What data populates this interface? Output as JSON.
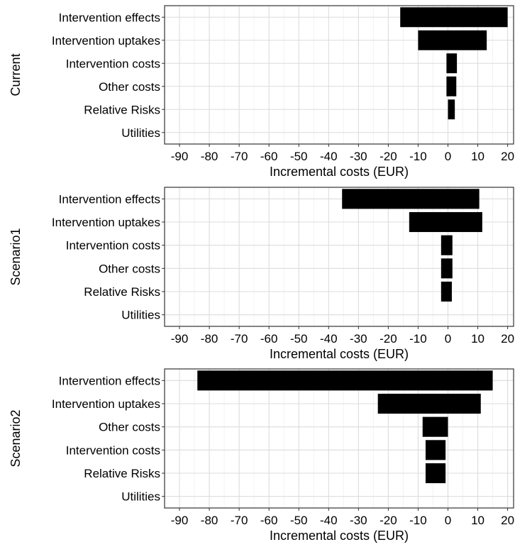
{
  "chart_data": [
    {
      "type": "bar",
      "orientation": "horizontal",
      "chart_style": "tornado",
      "facet_label": "Current",
      "xlabel": "Incremental costs (EUR)",
      "xlim": [
        -95,
        22
      ],
      "xticks": [
        -90,
        -80,
        -70,
        -60,
        -50,
        -40,
        -30,
        -20,
        -10,
        0,
        10,
        20
      ],
      "grid": true,
      "bar_color": "#000000",
      "categories": [
        "Intervention effects",
        "Intervention uptakes",
        "Intervention costs",
        "Other costs",
        "Relative Risks",
        "Utilities"
      ],
      "low": [
        -16,
        -10,
        -0.5,
        -0.5,
        0,
        0
      ],
      "high": [
        20,
        13,
        3,
        2.8,
        2.3,
        0
      ]
    },
    {
      "type": "bar",
      "orientation": "horizontal",
      "chart_style": "tornado",
      "facet_label": "Scenario1",
      "xlabel": "Incremental costs (EUR)",
      "xlim": [
        -95,
        22
      ],
      "xticks": [
        -90,
        -80,
        -70,
        -60,
        -50,
        -40,
        -30,
        -20,
        -10,
        0,
        10,
        20
      ],
      "grid": true,
      "bar_color": "#000000",
      "categories": [
        "Intervention effects",
        "Intervention uptakes",
        "Intervention costs",
        "Other costs",
        "Relative Risks",
        "Utilities"
      ],
      "low": [
        -35.5,
        -13,
        -2.3,
        -2.3,
        -2.3,
        0
      ],
      "high": [
        10.5,
        11.5,
        1.5,
        1.5,
        1.3,
        0
      ]
    },
    {
      "type": "bar",
      "orientation": "horizontal",
      "chart_style": "tornado",
      "facet_label": "Scenario2",
      "xlabel": "Incremental costs (EUR)",
      "xlim": [
        -95,
        22
      ],
      "xticks": [
        -90,
        -80,
        -70,
        -60,
        -50,
        -40,
        -30,
        -20,
        -10,
        0,
        10,
        20
      ],
      "grid": true,
      "bar_color": "#000000",
      "categories": [
        "Intervention effects",
        "Intervention uptakes",
        "Other costs",
        "Intervention costs",
        "Relative Risks",
        "Utilities"
      ],
      "low": [
        -84,
        -23.5,
        -8.5,
        -7.5,
        -7.5,
        0
      ],
      "high": [
        15,
        11,
        0,
        -0.8,
        -0.8,
        0
      ]
    }
  ]
}
